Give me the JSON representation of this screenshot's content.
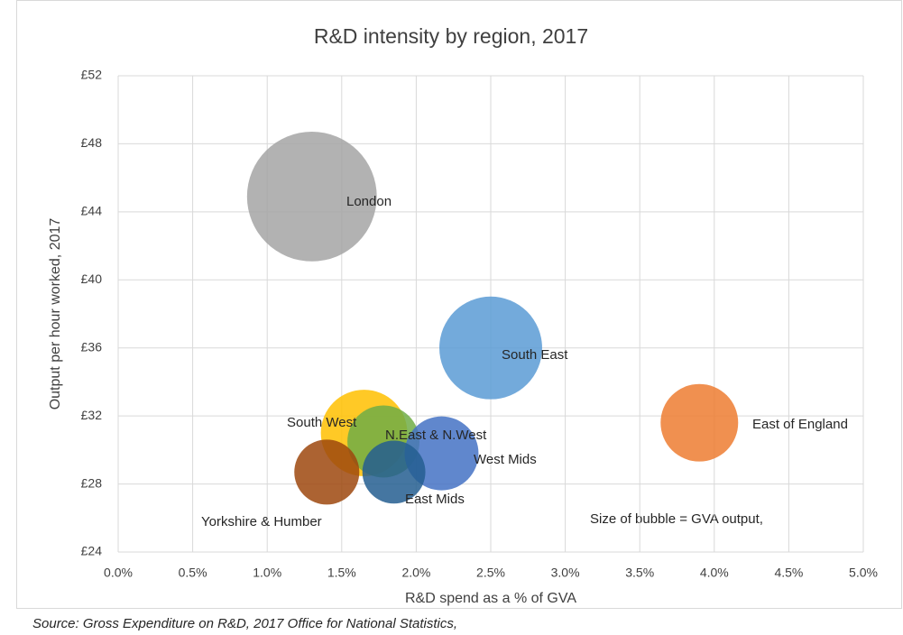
{
  "chart_data": {
    "type": "bubble",
    "title": "R&D intensity by region, 2017",
    "x_label": "R&D spend as a % of GVA",
    "y_label": "Output per hour worked, 2017",
    "annotation": "Size of bubble = GVA output,",
    "source": "Source: Gross Expenditure on R&D, 2017 Office for National Statistics,",
    "xlim": [
      0,
      5
    ],
    "ylim": [
      24,
      52
    ],
    "xticks": [
      {
        "value": 0,
        "label": "0.0%"
      },
      {
        "value": 0.5,
        "label": "0.5%"
      },
      {
        "value": 1,
        "label": "1.0%"
      },
      {
        "value": 1.5,
        "label": "1.5%"
      },
      {
        "value": 2,
        "label": "2.0%"
      },
      {
        "value": 2.5,
        "label": "2.5%"
      },
      {
        "value": 3,
        "label": "3.0%"
      },
      {
        "value": 3.5,
        "label": "3.5%"
      },
      {
        "value": 4,
        "label": "4.0%"
      },
      {
        "value": 4.5,
        "label": "4.5%"
      },
      {
        "value": 5,
        "label": "5.0%"
      }
    ],
    "yticks": [
      {
        "value": 24,
        "label": "£24"
      },
      {
        "value": 28,
        "label": "£28"
      },
      {
        "value": 32,
        "label": "£32"
      },
      {
        "value": 36,
        "label": "£36"
      },
      {
        "value": 40,
        "label": "£40"
      },
      {
        "value": 44,
        "label": "£44"
      },
      {
        "value": 48,
        "label": "£48"
      },
      {
        "value": 52,
        "label": "£52"
      }
    ],
    "grid": true,
    "series": [
      {
        "name": "London",
        "color": "#a5a5a5",
        "x": [
          1.3
        ],
        "values": [
          44.9
        ],
        "sizes": [
          518
        ]
      },
      {
        "name": "South East",
        "color": "#5b9bd5",
        "x": [
          2.5
        ],
        "values": [
          36.0
        ],
        "sizes": [
          325
        ]
      },
      {
        "name": "East of England",
        "color": "#ed7d31",
        "x": [
          3.9
        ],
        "values": [
          31.6
        ],
        "sizes": [
          185
        ]
      },
      {
        "name": "South West",
        "color": "#ffc000",
        "x": [
          1.65
        ],
        "values": [
          31.0
        ],
        "sizes": [
          230
        ]
      },
      {
        "name": "N.East & N.West",
        "color": "#70ad47",
        "x": [
          1.78
        ],
        "values": [
          30.5
        ],
        "sizes": [
          160
        ]
      },
      {
        "name": "West Mids",
        "color": "#4472c4",
        "x": [
          2.17
        ],
        "values": [
          29.8
        ],
        "sizes": [
          168
        ]
      },
      {
        "name": "East Mids",
        "color": "#255e91",
        "x": [
          1.85
        ],
        "values": [
          28.7
        ],
        "sizes": [
          122
        ]
      },
      {
        "name": "Yorkshire & Humber",
        "color": "#9e480e",
        "x": [
          1.4
        ],
        "values": [
          28.7
        ],
        "sizes": [
          130
        ]
      }
    ]
  }
}
